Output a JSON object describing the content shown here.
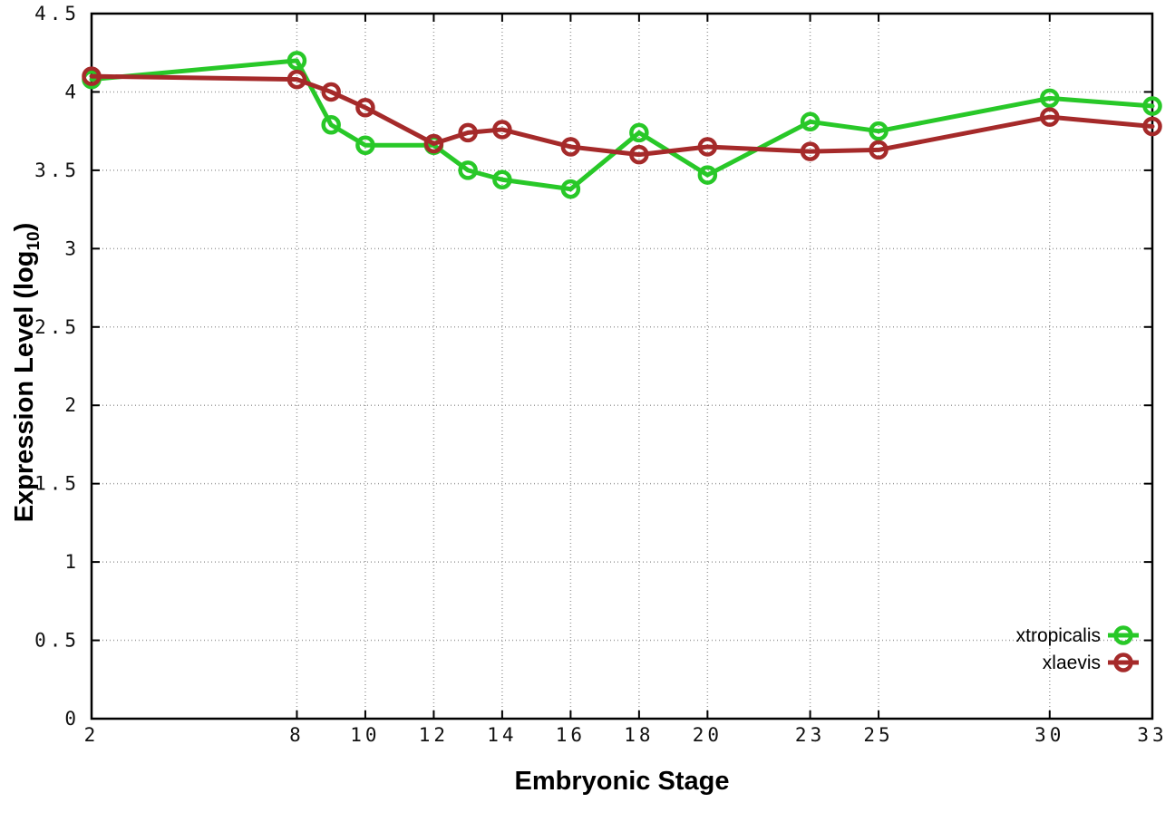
{
  "chart_data": {
    "type": "line",
    "title": "",
    "xlabel": "Embryonic Stage",
    "ylabel": "Expression Level (log10)",
    "ylabel_parts": {
      "prefix": "Expression Level (log",
      "sub": "10",
      "suffix": ")"
    },
    "x": [
      2,
      8,
      9,
      10,
      12,
      13,
      14,
      16,
      18,
      20,
      23,
      25,
      30,
      33
    ],
    "series": [
      {
        "name": "xtropicalis",
        "color": "#28C828",
        "values": [
          4.08,
          4.2,
          3.79,
          3.66,
          3.66,
          3.5,
          3.44,
          3.38,
          3.74,
          3.47,
          3.81,
          3.75,
          3.96,
          3.91
        ]
      },
      {
        "name": "xlaevis",
        "color": "#A52A2A",
        "values": [
          4.1,
          4.08,
          4.0,
          3.9,
          3.67,
          3.74,
          3.76,
          3.65,
          3.6,
          3.65,
          3.62,
          3.63,
          3.84,
          3.78
        ]
      }
    ],
    "xticks": [
      2,
      8,
      10,
      12,
      14,
      16,
      18,
      20,
      23,
      25,
      30,
      33
    ],
    "yticks": [
      0,
      0.5,
      1,
      1.5,
      2,
      2.5,
      3,
      3.5,
      4,
      4.5
    ],
    "xlim": [
      2,
      33
    ],
    "ylim": [
      0,
      4.5
    ],
    "grid": true,
    "legend_position": "bottom-right",
    "legend": [
      "xtropicalis",
      "xlaevis"
    ]
  },
  "colors": {
    "xtropicalis": "#28C828",
    "xlaevis": "#A52A2A",
    "grid": "#9E9E9E",
    "axis": "#000000",
    "background": "#FFFFFF"
  }
}
